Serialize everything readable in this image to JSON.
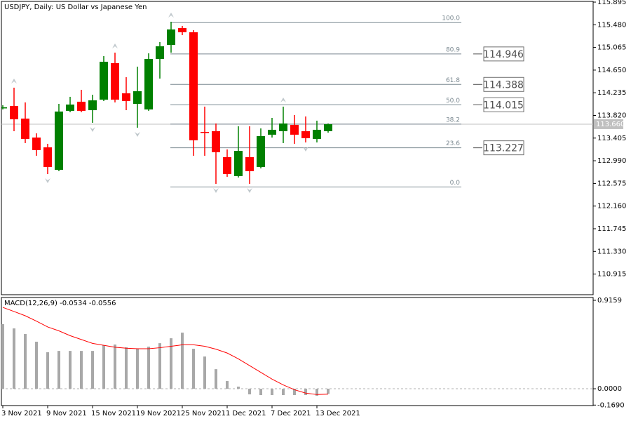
{
  "chart_data": [
    {
      "type": "candlestick",
      "title": "USDJPY, Daily:  US Dollar vs Japanese Yen",
      "categories": [
        "3 Nov 2021",
        null,
        null,
        null,
        "9 Nov 2021",
        null,
        null,
        null,
        "15 Nov 2021",
        null,
        null,
        null,
        "19 Nov 2021",
        null,
        null,
        null,
        "25 Nov 2021",
        null,
        null,
        null,
        "1 Dec 2021",
        null,
        null,
        null,
        "7 Dec 2021",
        null,
        null,
        null,
        "13 Dec 2021",
        null
      ],
      "open": [
        113.968,
        113.994,
        113.762,
        113.415,
        113.236,
        112.824,
        113.904,
        114.071,
        113.916,
        114.109,
        114.777,
        114.225,
        114.032,
        113.929,
        114.854,
        115.111,
        115.42,
        115.343,
        113.518,
        113.531,
        113.056,
        112.709,
        113.056,
        112.876,
        113.467,
        113.531,
        113.647,
        113.531,
        113.39,
        113.531
      ],
      "high": [
        114.006,
        114.328,
        114.058,
        113.492,
        113.3,
        114.032,
        114.161,
        114.289,
        114.199,
        114.906,
        114.97,
        114.52,
        114.713,
        114.957,
        115.163,
        115.535,
        115.458,
        115.381,
        113.981,
        113.672,
        113.197,
        113.621,
        113.621,
        113.582,
        113.775,
        113.981,
        113.827,
        113.801,
        113.724,
        113.672
      ],
      "low": [
        113.929,
        113.531,
        113.313,
        113.081,
        112.747,
        112.799,
        113.878,
        113.878,
        113.685,
        114.083,
        114.058,
        113.916,
        113.595,
        113.904,
        114.495,
        114.97,
        115.291,
        113.081,
        113.081,
        112.567,
        112.696,
        112.683,
        112.567,
        112.85,
        113.415,
        113.313,
        113.3,
        113.325,
        113.325,
        113.505
      ],
      "close": [
        113.968,
        113.749,
        113.39,
        113.184,
        112.876,
        113.891,
        114.019,
        113.904,
        114.096,
        114.803,
        114.109,
        114.083,
        114.263,
        114.854,
        115.086,
        115.394,
        115.343,
        113.364,
        113.505,
        113.146,
        112.747,
        113.171,
        112.799,
        113.441,
        113.557,
        113.672,
        113.467,
        113.403,
        113.557,
        113.659
      ],
      "up_color": "#008000",
      "down_color": "#ff0000",
      "fractal_up": [
        1,
        10,
        15,
        25
      ],
      "fractal_down": [
        4,
        8,
        12,
        19,
        22,
        27
      ],
      "fractal_color": "#c0c8cc",
      "ylim": [
        110.537,
        115.908
      ],
      "yticks": [
        115.895,
        {
          "value": 115.48,
          "label": "115.480"
        },
        115.065,
        {
          "value": 114.65,
          "label": "114.650"
        },
        114.235,
        {
          "value": 113.82,
          "label": "113.820"
        },
        113.405,
        {
          "value": 112.99,
          "label": "112.990"
        },
        112.575,
        {
          "value": 112.16,
          "label": "112.160"
        },
        111.745,
        {
          "value": 111.33,
          "label": "111.330"
        },
        110.915
      ],
      "last": {
        "value": 113.66,
        "label": "113.660"
      },
      "fib": {
        "levels": [
          "100.0",
          "80.9",
          "61.8",
          "50.0",
          "38.2",
          "23.6",
          "0.0"
        ],
        "prices": [
          115.52,
          114.946,
          114.388,
          114.015,
          113.661,
          113.227,
          112.51
        ],
        "boxed": [
          false,
          true,
          true,
          true,
          false,
          true,
          false
        ],
        "color": "#7a8890"
      }
    },
    {
      "type": "macd",
      "title": "MACD(12,26,9) -0.0534 -0.0556",
      "values": [
        0.669,
        0.625,
        0.567,
        0.487,
        0.378,
        0.392,
        0.392,
        0.392,
        0.392,
        0.451,
        0.458,
        0.429,
        0.414,
        0.436,
        0.472,
        0.523,
        0.581,
        0.414,
        0.334,
        0.203,
        0.08,
        0.022,
        -0.058,
        -0.065,
        -0.065,
        -0.065,
        -0.065,
        -0.065,
        -0.073,
        -0.0534
      ],
      "color": "#a8a8a8",
      "signal": [
        0.843,
        0.8,
        0.756,
        0.7,
        0.64,
        0.6,
        0.55,
        0.51,
        0.47,
        0.45,
        0.43,
        0.42,
        0.415,
        0.415,
        0.425,
        0.44,
        0.455,
        0.455,
        0.44,
        0.41,
        0.37,
        0.31,
        0.24,
        0.17,
        0.1,
        0.04,
        -0.01,
        -0.045,
        -0.06,
        -0.0556
      ],
      "signal_color": "#ff0000",
      "ylim": [
        -0.174,
        0.945
      ],
      "yticks": [
        0.9159,
        {
          "value": 0,
          "label": "0.0000"
        },
        {
          "value": -0.169,
          "label": "-0.1690"
        }
      ]
    }
  ]
}
